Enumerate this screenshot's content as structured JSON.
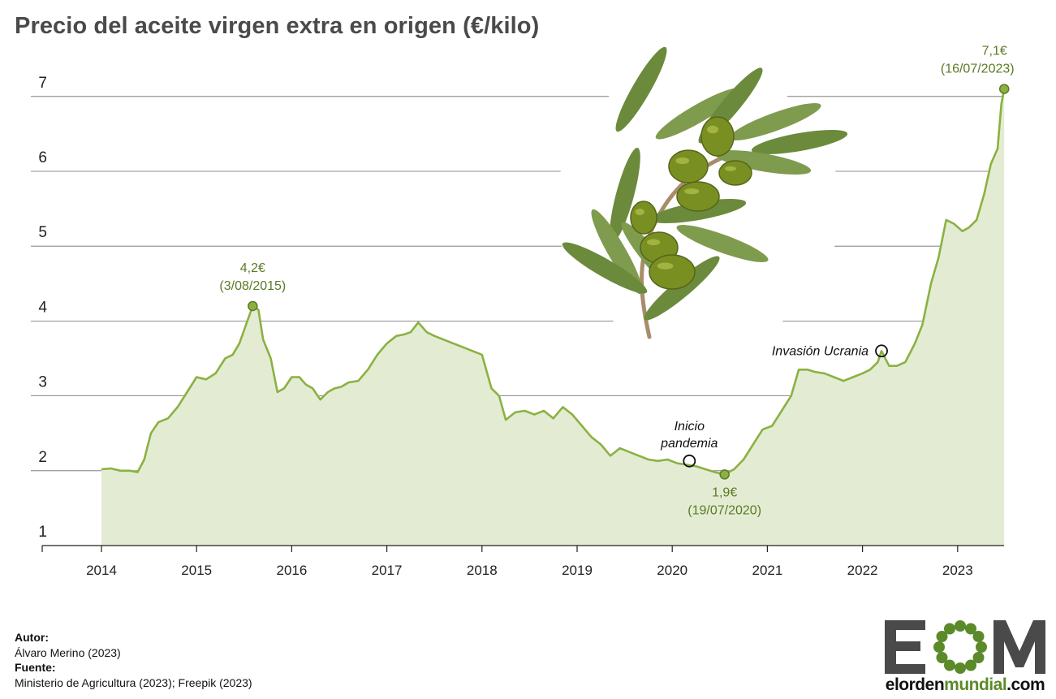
{
  "title": "Precio del aceite virgen extra en origen (€/kilo)",
  "colors": {
    "line": "#8bb142",
    "fill": "#e3ecd3",
    "annotation": "#5b7a25",
    "grid": "#555555"
  },
  "chart_data": {
    "type": "area",
    "ylim": [
      1,
      7.5
    ],
    "xlim": [
      2014,
      2023.5
    ],
    "yticks": [
      1,
      2,
      3,
      4,
      5,
      6,
      7
    ],
    "xticks": [
      2014,
      2015,
      2016,
      2017,
      2018,
      2019,
      2020,
      2021,
      2022,
      2023
    ],
    "series": [
      {
        "x": [
          2014.0,
          2014.1,
          2014.2,
          2014.3,
          2014.38,
          2014.45,
          2014.52,
          2014.6,
          2014.7,
          2014.8,
          2014.9,
          2015.0,
          2015.1,
          2015.2,
          2015.3,
          2015.38,
          2015.45,
          2015.52,
          2015.59,
          2015.65,
          2015.7,
          2015.78,
          2015.85,
          2015.92,
          2016.0,
          2016.08,
          2016.15,
          2016.22,
          2016.3,
          2016.38,
          2016.45,
          2016.52,
          2016.6,
          2016.7,
          2016.8,
          2016.9,
          2017.0,
          2017.1,
          2017.18,
          2017.25,
          2017.33,
          2017.42,
          2017.5,
          2017.6,
          2017.7,
          2017.8,
          2017.9,
          2018.0,
          2018.1,
          2018.18,
          2018.25,
          2018.35,
          2018.45,
          2018.55,
          2018.65,
          2018.75,
          2018.85,
          2018.95,
          2019.05,
          2019.15,
          2019.25,
          2019.35,
          2019.45,
          2019.55,
          2019.65,
          2019.75,
          2019.85,
          2019.95,
          2020.05,
          2020.15,
          2020.25,
          2020.35,
          2020.45,
          2020.55,
          2020.65,
          2020.75,
          2020.85,
          2020.95,
          2021.05,
          2021.15,
          2021.25,
          2021.33,
          2021.42,
          2021.5,
          2021.6,
          2021.7,
          2021.8,
          2021.9,
          2022.0,
          2022.08,
          2022.16,
          2022.2,
          2022.28,
          2022.36,
          2022.45,
          2022.55,
          2022.63,
          2022.72,
          2022.8,
          2022.88,
          2022.96,
          2023.05,
          2023.12,
          2023.2,
          2023.28,
          2023.35,
          2023.42,
          2023.46,
          2023.49
        ],
        "y": [
          2.02,
          2.03,
          2.0,
          2.0,
          1.98,
          2.15,
          2.5,
          2.65,
          2.7,
          2.85,
          3.05,
          3.25,
          3.22,
          3.3,
          3.5,
          3.55,
          3.7,
          3.95,
          4.2,
          4.15,
          3.75,
          3.5,
          3.05,
          3.1,
          3.25,
          3.25,
          3.15,
          3.1,
          2.95,
          3.05,
          3.1,
          3.12,
          3.18,
          3.2,
          3.35,
          3.55,
          3.7,
          3.8,
          3.82,
          3.85,
          3.98,
          3.85,
          3.8,
          3.75,
          3.7,
          3.65,
          3.6,
          3.55,
          3.1,
          3.0,
          2.68,
          2.78,
          2.8,
          2.75,
          2.8,
          2.7,
          2.85,
          2.75,
          2.6,
          2.45,
          2.35,
          2.2,
          2.3,
          2.25,
          2.2,
          2.15,
          2.13,
          2.15,
          2.1,
          2.08,
          2.06,
          2.02,
          1.98,
          1.95,
          2.02,
          2.15,
          2.35,
          2.55,
          2.6,
          2.8,
          3.0,
          3.35,
          3.35,
          3.32,
          3.3,
          3.25,
          3.2,
          3.25,
          3.3,
          3.35,
          3.45,
          3.6,
          3.4,
          3.4,
          3.45,
          3.7,
          3.95,
          4.5,
          4.85,
          5.35,
          5.3,
          5.2,
          5.25,
          5.35,
          5.7,
          6.1,
          6.3,
          6.9,
          7.1
        ]
      }
    ],
    "annotations": [
      {
        "text": "4,2€",
        "date": "(3/08/2015)",
        "x": 2015.59,
        "y": 4.2,
        "style": "value"
      },
      {
        "text": "1,9€",
        "date": "(19/07/2020)",
        "x": 2020.55,
        "y": 1.95,
        "style": "value"
      },
      {
        "text": "7,1€",
        "date": "(16/07/2023)",
        "x": 2023.49,
        "y": 7.1,
        "style": "value"
      },
      {
        "text": "Invasión Ucrania",
        "date": "",
        "x": 2022.2,
        "y": 3.6,
        "style": "event"
      },
      {
        "text": "Inicio",
        "date": "pandemia",
        "x": 2020.18,
        "y": 2.13,
        "style": "event"
      }
    ]
  },
  "credits": {
    "author_label": "Autor:",
    "author": "Álvaro Merino (2023)",
    "source_label": "Fuente:",
    "source": "Ministerio de Agricultura (2023); Freepik (2023)"
  },
  "logo": {
    "letters": "EOM",
    "url_prefix": "elorden",
    "url_mid": "mundial",
    "url_suffix": ".com"
  }
}
